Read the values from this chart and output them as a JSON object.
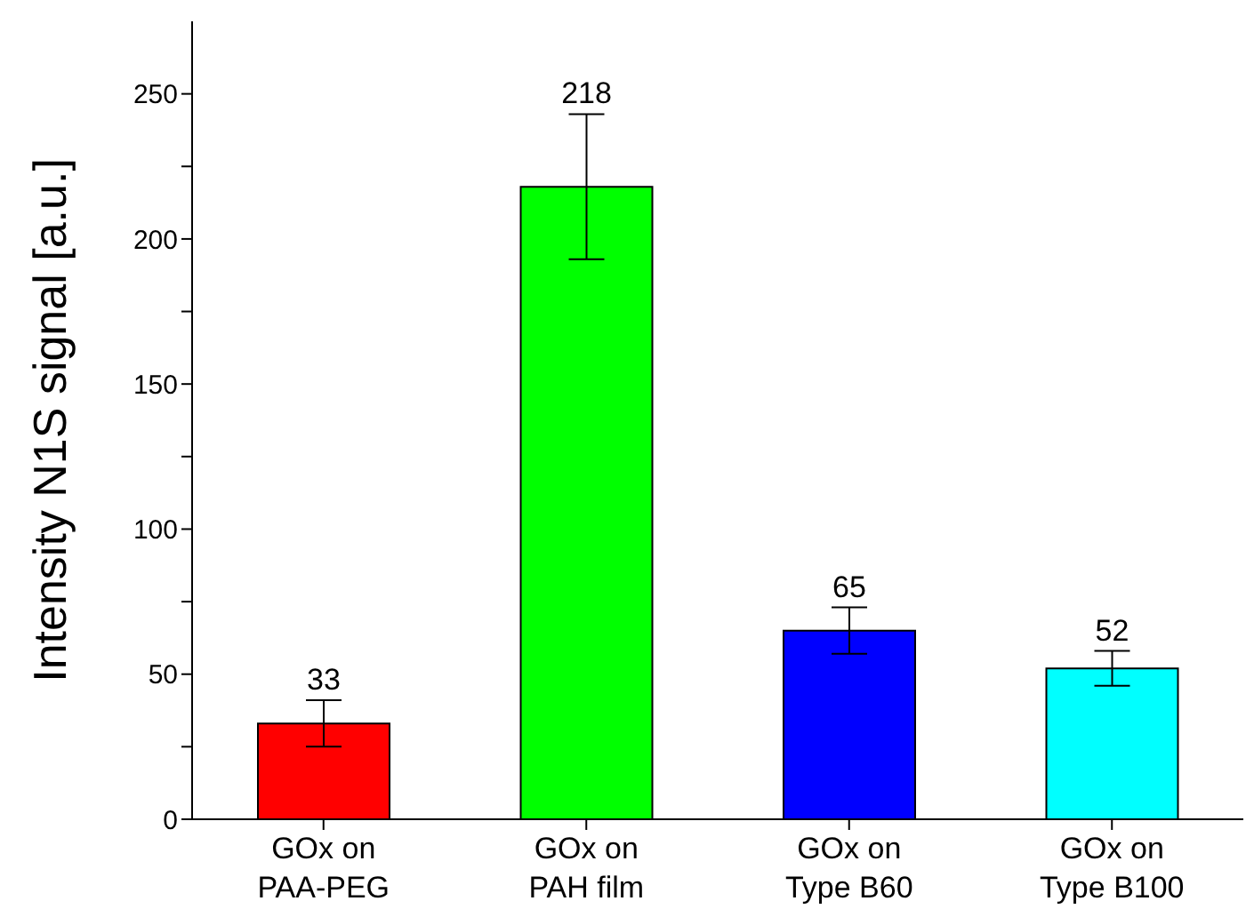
{
  "chart_data": {
    "type": "bar",
    "ylabel": "Intensity N1S signal [a.u.]",
    "categories": [
      "GOx on\nPAA-PEG",
      "GOx on\nPAH film",
      "GOx on\nType B60",
      "GOx on\nType B100"
    ],
    "values": [
      33,
      218,
      65,
      52
    ],
    "colors": [
      "#ff0000",
      "#00ff00",
      "#0000ff",
      "#00ffff"
    ],
    "errors": [
      8,
      25,
      8,
      6
    ],
    "data_labels": true,
    "ylim": [
      0,
      275
    ],
    "yticks": [
      0,
      {
        "value": 25,
        "label": null
      },
      50,
      {
        "value": 75,
        "label": null
      },
      100,
      {
        "value": 125,
        "label": null
      },
      150,
      {
        "value": 175,
        "label": null
      },
      200,
      {
        "value": 225,
        "label": null
      },
      250
    ],
    "grid": false
  }
}
